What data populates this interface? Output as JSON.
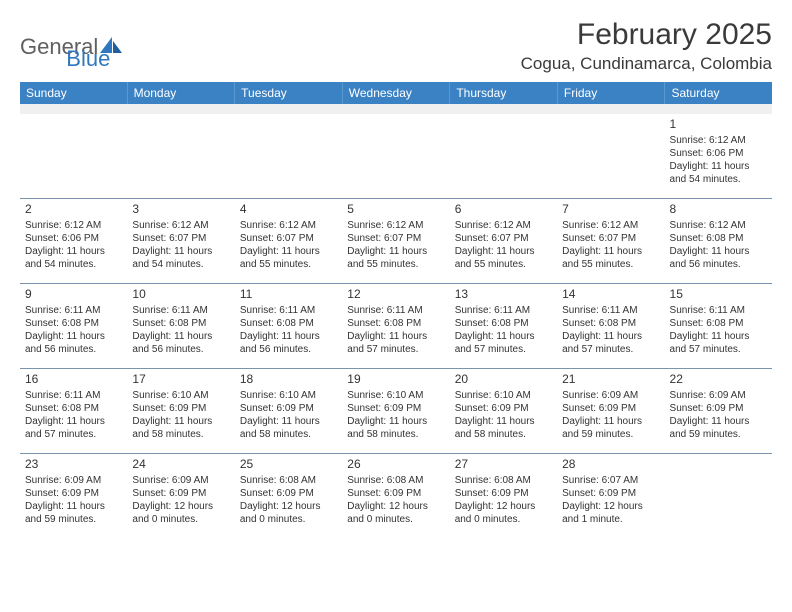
{
  "logo": {
    "text1": "General",
    "text2": "Blue"
  },
  "title": "February 2025",
  "location": "Cogua, Cundinamarca, Colombia",
  "colors": {
    "header_bg": "#3b82c4",
    "header_text": "#ffffff",
    "border": "#7a95ab",
    "logo_gray": "#606060",
    "logo_blue": "#2f78bf"
  },
  "weekdays": [
    "Sunday",
    "Monday",
    "Tuesday",
    "Wednesday",
    "Thursday",
    "Friday",
    "Saturday"
  ],
  "weeks": [
    [
      null,
      null,
      null,
      null,
      null,
      null,
      {
        "n": "1",
        "sr": "6:12 AM",
        "ss": "6:06 PM",
        "dl": "11 hours and 54 minutes."
      }
    ],
    [
      {
        "n": "2",
        "sr": "6:12 AM",
        "ss": "6:06 PM",
        "dl": "11 hours and 54 minutes."
      },
      {
        "n": "3",
        "sr": "6:12 AM",
        "ss": "6:07 PM",
        "dl": "11 hours and 54 minutes."
      },
      {
        "n": "4",
        "sr": "6:12 AM",
        "ss": "6:07 PM",
        "dl": "11 hours and 55 minutes."
      },
      {
        "n": "5",
        "sr": "6:12 AM",
        "ss": "6:07 PM",
        "dl": "11 hours and 55 minutes."
      },
      {
        "n": "6",
        "sr": "6:12 AM",
        "ss": "6:07 PM",
        "dl": "11 hours and 55 minutes."
      },
      {
        "n": "7",
        "sr": "6:12 AM",
        "ss": "6:07 PM",
        "dl": "11 hours and 55 minutes."
      },
      {
        "n": "8",
        "sr": "6:12 AM",
        "ss": "6:08 PM",
        "dl": "11 hours and 56 minutes."
      }
    ],
    [
      {
        "n": "9",
        "sr": "6:11 AM",
        "ss": "6:08 PM",
        "dl": "11 hours and 56 minutes."
      },
      {
        "n": "10",
        "sr": "6:11 AM",
        "ss": "6:08 PM",
        "dl": "11 hours and 56 minutes."
      },
      {
        "n": "11",
        "sr": "6:11 AM",
        "ss": "6:08 PM",
        "dl": "11 hours and 56 minutes."
      },
      {
        "n": "12",
        "sr": "6:11 AM",
        "ss": "6:08 PM",
        "dl": "11 hours and 57 minutes."
      },
      {
        "n": "13",
        "sr": "6:11 AM",
        "ss": "6:08 PM",
        "dl": "11 hours and 57 minutes."
      },
      {
        "n": "14",
        "sr": "6:11 AM",
        "ss": "6:08 PM",
        "dl": "11 hours and 57 minutes."
      },
      {
        "n": "15",
        "sr": "6:11 AM",
        "ss": "6:08 PM",
        "dl": "11 hours and 57 minutes."
      }
    ],
    [
      {
        "n": "16",
        "sr": "6:11 AM",
        "ss": "6:08 PM",
        "dl": "11 hours and 57 minutes."
      },
      {
        "n": "17",
        "sr": "6:10 AM",
        "ss": "6:09 PM",
        "dl": "11 hours and 58 minutes."
      },
      {
        "n": "18",
        "sr": "6:10 AM",
        "ss": "6:09 PM",
        "dl": "11 hours and 58 minutes."
      },
      {
        "n": "19",
        "sr": "6:10 AM",
        "ss": "6:09 PM",
        "dl": "11 hours and 58 minutes."
      },
      {
        "n": "20",
        "sr": "6:10 AM",
        "ss": "6:09 PM",
        "dl": "11 hours and 58 minutes."
      },
      {
        "n": "21",
        "sr": "6:09 AM",
        "ss": "6:09 PM",
        "dl": "11 hours and 59 minutes."
      },
      {
        "n": "22",
        "sr": "6:09 AM",
        "ss": "6:09 PM",
        "dl": "11 hours and 59 minutes."
      }
    ],
    [
      {
        "n": "23",
        "sr": "6:09 AM",
        "ss": "6:09 PM",
        "dl": "11 hours and 59 minutes."
      },
      {
        "n": "24",
        "sr": "6:09 AM",
        "ss": "6:09 PM",
        "dl": "12 hours and 0 minutes."
      },
      {
        "n": "25",
        "sr": "6:08 AM",
        "ss": "6:09 PM",
        "dl": "12 hours and 0 minutes."
      },
      {
        "n": "26",
        "sr": "6:08 AM",
        "ss": "6:09 PM",
        "dl": "12 hours and 0 minutes."
      },
      {
        "n": "27",
        "sr": "6:08 AM",
        "ss": "6:09 PM",
        "dl": "12 hours and 0 minutes."
      },
      {
        "n": "28",
        "sr": "6:07 AM",
        "ss": "6:09 PM",
        "dl": "12 hours and 1 minute."
      },
      null
    ]
  ],
  "labels": {
    "sunrise": "Sunrise:",
    "sunset": "Sunset:",
    "daylight": "Daylight:"
  }
}
